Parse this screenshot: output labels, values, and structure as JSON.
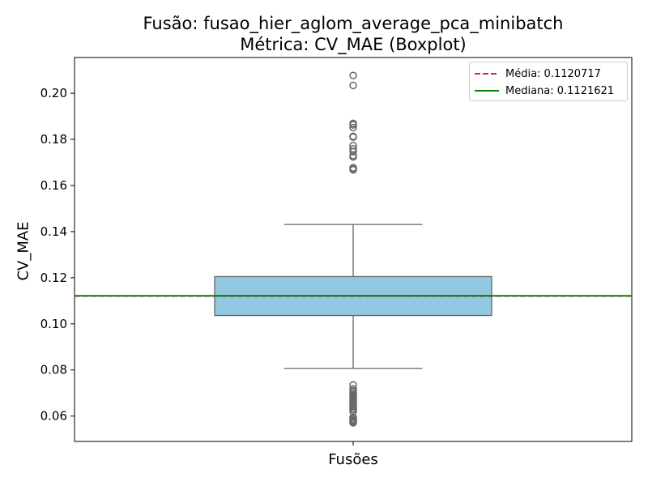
{
  "chart_data": {
    "type": "boxplot",
    "title": "Fusão: fusao_hier_aglom_average_pca_minibatch",
    "subtitle": "Métrica: CV_MAE (Boxplot)",
    "xlabel": "Fusões",
    "ylabel": "CV_MAE",
    "ylim": [
      0.049,
      0.2155
    ],
    "yticks": [
      0.06,
      0.08,
      0.1,
      0.12,
      0.14,
      0.16,
      0.18,
      0.2
    ],
    "ytick_labels": [
      "0.06",
      "0.08",
      "0.10",
      "0.12",
      "0.14",
      "0.16",
      "0.18",
      "0.20"
    ],
    "grid": false,
    "legend_position": "top-right",
    "box": {
      "color": "#92c9e1",
      "edge_color": "#666666",
      "whisker_low": 0.0807,
      "q1": 0.1036,
      "median": 0.1122,
      "q3": 0.1205,
      "whisker_high": 0.1431
    },
    "outliers": [
      0.2077,
      0.2034,
      0.1869,
      0.1863,
      0.1851,
      0.1813,
      0.181,
      0.1773,
      0.1759,
      0.1747,
      0.173,
      0.1724,
      0.1677,
      0.1671,
      0.1668,
      0.0735,
      0.0718,
      0.071,
      0.0703,
      0.0695,
      0.0688,
      0.068,
      0.0672,
      0.0665,
      0.0657,
      0.065,
      0.0642,
      0.0635,
      0.0628,
      0.062,
      0.0595,
      0.0588,
      0.0582,
      0.0578,
      0.0575,
      0.0571
    ],
    "mean_line": {
      "label": "Média: 0.1120717",
      "value": 0.1120717,
      "color": "#d62728",
      "style": "dashed"
    },
    "median_line": {
      "label": "Mediana: 0.1121621",
      "value": 0.1121621,
      "color": "#008000",
      "style": "solid"
    }
  }
}
